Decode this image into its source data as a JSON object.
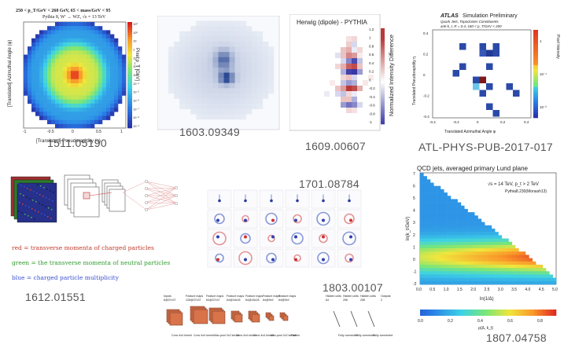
{
  "panels": {
    "p1": {
      "id_label": "1511.05190",
      "title": "250 < p_T/GeV < 260 GeV, 65 < mass/GeV < 95",
      "subtitle": "Pythia 8, W' → WZ, √s = 13 TeV",
      "xlabel": "[Translated] Pseudorapidity (η)",
      "ylabel": "[Translated] Azimuthal Angle (φ)",
      "zlabel": "Pixel p_T [GeV]",
      "xticks": [
        "-1",
        "-0.5",
        "0",
        "0.5",
        "1"
      ],
      "zticks": [
        "10³",
        "10²",
        "10",
        "1",
        "10⁻¹",
        "10⁻²",
        "10⁻³",
        "10⁻⁴",
        "10⁻⁵",
        "10⁻⁶",
        "10⁻⁷",
        "10⁻⁸",
        "10⁻⁹"
      ]
    },
    "p2": {
      "id_label": "1603.09349"
    },
    "p3": {
      "id_label": "1609.00607",
      "title": "Herwig (dipole) - PYTHIA",
      "zlabel": "Normalized Intensity Difference",
      "zticks": [
        "1.2",
        "1",
        "0.8",
        "0.6",
        "0.4",
        "0.2",
        "0",
        "-0.2",
        "-0.4",
        "-0.6",
        "-0.8",
        "-1"
      ]
    },
    "p4": {
      "id_label": "ATL-PHYS-PUB-2017-017",
      "brand": "ATLAS",
      "title": "Simulation Preliminary",
      "subtitle1": "Quark Jets, Topocluster Constituents",
      "subtitle2": "anti-k_t, R = 0.4, 160 < p_T/GeV < 200",
      "xlabel": "Translated Azimuthal Angle φ",
      "ylabel": "Translated Pseudorapidity η",
      "zlabel": "Pixel Intensity",
      "xticks": [
        "-0.4",
        "-0.2",
        "0",
        "0.2",
        "0.4"
      ],
      "yticks": [
        "0.4",
        "0.2",
        "0",
        "-0.2",
        "-0.4"
      ],
      "zticks": [
        "1",
        "10⁻¹",
        "10⁻²"
      ]
    },
    "p5": {
      "id_label": "1612.01551",
      "legend": [
        {
          "key": "red",
          "text": "= transverse momenta of charged particles",
          "color": "#c0392b"
        },
        {
          "key": "green",
          "text": "= the transverse momenta of neutral particles",
          "color": "#2e9b2e"
        },
        {
          "key": "blue",
          "text": "= charged particle multiplicity",
          "color": "#3a4fd0"
        }
      ]
    },
    "p6": {
      "id_label": "1701.08784"
    },
    "p7": {
      "id_label": "1803.00107",
      "layers": [
        {
          "top": "Inputs",
          "sub": "6@37x37"
        },
        {
          "top": "Feature maps",
          "sub": "128@37x37"
        },
        {
          "top": "Feature maps",
          "sub": "64@37x37"
        },
        {
          "top": "Feature maps",
          "sub": "64@18x18"
        },
        {
          "top": "Feature maps",
          "sub": "64@18x18"
        },
        {
          "top": "Feature maps",
          "sub": "64@9x9"
        },
        {
          "top": "Feature maps",
          "sub": "64@9x9"
        },
        {
          "top": "Hidden units",
          "sub": "64"
        },
        {
          "top": "Hidden units",
          "sub": "256"
        },
        {
          "top": "Hidden units",
          "sub": "256"
        },
        {
          "top": "Outputs",
          "sub": "2"
        }
      ],
      "ops": [
        "Conv 4x4 kernel",
        "Conv 4x4 kernel",
        "Max-pool 2x2 kernel",
        "Conv 4x4 kernel",
        "Conv 4x4 kernel",
        "Max-pool 2x2 kernel",
        "Flatten",
        "Fully connected",
        "Fully connected",
        "Fully connected"
      ]
    },
    "p8": {
      "id_label": "1807.04758",
      "title": "QCD jets, averaged primary Lund plane",
      "annotation1": "√s = 14 TeV, p_t > 2 TeV",
      "annotation2": "Pythia8.230(Monash13)",
      "xlabel": "ln(1/Δ)",
      "ylabel": "ln(k_t/GeV)",
      "zlabel": "ρ(Δ, k_t)",
      "xticks": [
        "0.0",
        "0.5",
        "1.0",
        "1.5",
        "2.0",
        "2.5",
        "3.0",
        "3.5",
        "4.0",
        "4.5",
        "5.0"
      ],
      "yticks": [
        "7",
        "6",
        "5",
        "4",
        "3",
        "2",
        "1",
        "0",
        "-1",
        "-2"
      ],
      "zticks": [
        "0.0",
        "0.2",
        "0.4",
        "0.6",
        "0.8"
      ]
    }
  }
}
